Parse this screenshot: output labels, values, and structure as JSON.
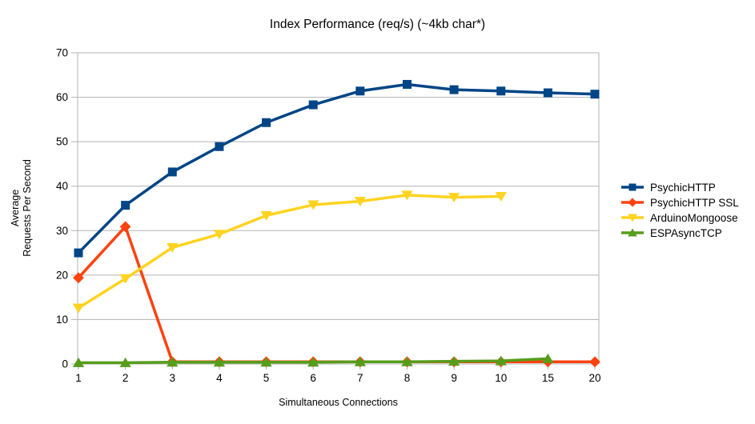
{
  "chart_data": {
    "type": "line",
    "title": "Index Performance (req/s) (~4kb char*)",
    "xlabel": "Simultaneous Connections",
    "ylabel_lines": [
      "Average",
      "Requests Per Second"
    ],
    "categories": [
      "1",
      "2",
      "3",
      "4",
      "5",
      "6",
      "7",
      "8",
      "9",
      "10",
      "15",
      "20"
    ],
    "ylim": [
      0,
      70
    ],
    "ytick_step": 10,
    "grid": "horizontal",
    "legend_position": "right",
    "axis_color": "#b3b3b3",
    "text_color": "#000000",
    "background_color": "#ffffff",
    "series": [
      {
        "name": "PsychicHTTP",
        "color": "#004586",
        "marker": "square",
        "values": [
          25.0,
          35.7,
          43.2,
          48.9,
          54.3,
          58.3,
          61.4,
          62.9,
          61.7,
          61.4,
          61.0,
          60.7
        ]
      },
      {
        "name": "PsychicHTTP SSL",
        "color": "#FF420E",
        "marker": "diamond",
        "values": [
          19.4,
          30.9,
          0.5,
          0.5,
          0.5,
          0.5,
          0.5,
          0.5,
          0.5,
          0.5,
          0.5,
          0.5
        ]
      },
      {
        "name": "ArduinoMongoose",
        "color": "#FFD320",
        "marker": "triangle-down",
        "values": [
          12.6,
          19.2,
          26.2,
          29.2,
          33.4,
          35.8,
          36.6,
          38.0,
          37.5,
          37.7,
          null,
          null
        ]
      },
      {
        "name": "ESPAsyncTCP",
        "color": "#579D1C",
        "marker": "triangle-up",
        "values": [
          0.3,
          0.3,
          0.4,
          0.4,
          0.4,
          0.4,
          0.5,
          0.5,
          0.6,
          0.7,
          1.2,
          null
        ]
      }
    ]
  }
}
